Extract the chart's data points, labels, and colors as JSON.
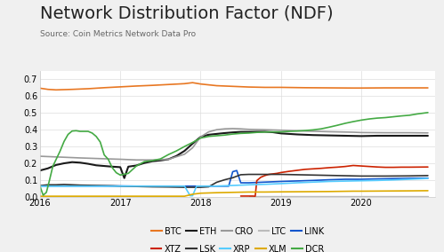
{
  "title": "Network Distribution Factor (NDF)",
  "subtitle": "Source: Coin Metrics Network Data Pro",
  "ylim": [
    0,
    0.75
  ],
  "yticks": [
    0,
    0.1,
    0.2,
    0.3,
    0.4,
    0.5,
    0.6,
    0.7
  ],
  "background_color": "#f0f0f0",
  "plot_background": "#ffffff",
  "grid_color": "#dddddd",
  "series": {
    "BTC": {
      "color": "#e87722",
      "linewidth": 1.2,
      "points": [
        [
          2016.0,
          0.645
        ],
        [
          2016.1,
          0.638
        ],
        [
          2016.2,
          0.635
        ],
        [
          2016.4,
          0.638
        ],
        [
          2016.6,
          0.642
        ],
        [
          2016.8,
          0.648
        ],
        [
          2017.0,
          0.653
        ],
        [
          2017.2,
          0.658
        ],
        [
          2017.4,
          0.662
        ],
        [
          2017.6,
          0.667
        ],
        [
          2017.8,
          0.672
        ],
        [
          2017.9,
          0.678
        ],
        [
          2018.0,
          0.67
        ],
        [
          2018.2,
          0.66
        ],
        [
          2018.4,
          0.656
        ],
        [
          2018.6,
          0.652
        ],
        [
          2018.8,
          0.65
        ],
        [
          2019.0,
          0.65
        ],
        [
          2019.3,
          0.648
        ],
        [
          2019.6,
          0.647
        ],
        [
          2019.9,
          0.646
        ],
        [
          2020.0,
          0.646
        ],
        [
          2020.3,
          0.647
        ],
        [
          2020.6,
          0.647
        ],
        [
          2020.83,
          0.647
        ]
      ]
    },
    "ETH": {
      "color": "#1a1a1a",
      "linewidth": 1.5,
      "points": [
        [
          2016.0,
          0.155
        ],
        [
          2016.1,
          0.168
        ],
        [
          2016.2,
          0.188
        ],
        [
          2016.3,
          0.198
        ],
        [
          2016.4,
          0.205
        ],
        [
          2016.5,
          0.202
        ],
        [
          2016.6,
          0.195
        ],
        [
          2016.7,
          0.186
        ],
        [
          2016.8,
          0.182
        ],
        [
          2016.9,
          0.178
        ],
        [
          2017.0,
          0.175
        ],
        [
          2017.05,
          0.11
        ],
        [
          2017.1,
          0.178
        ],
        [
          2017.2,
          0.185
        ],
        [
          2017.3,
          0.2
        ],
        [
          2017.4,
          0.21
        ],
        [
          2017.5,
          0.215
        ],
        [
          2017.6,
          0.222
        ],
        [
          2017.7,
          0.242
        ],
        [
          2017.8,
          0.272
        ],
        [
          2017.9,
          0.315
        ],
        [
          2018.0,
          0.355
        ],
        [
          2018.1,
          0.368
        ],
        [
          2018.2,
          0.373
        ],
        [
          2018.3,
          0.378
        ],
        [
          2018.4,
          0.382
        ],
        [
          2018.5,
          0.385
        ],
        [
          2018.6,
          0.385
        ],
        [
          2018.7,
          0.386
        ],
        [
          2018.8,
          0.386
        ],
        [
          2018.9,
          0.383
        ],
        [
          2019.0,
          0.376
        ],
        [
          2019.2,
          0.37
        ],
        [
          2019.4,
          0.366
        ],
        [
          2019.6,
          0.364
        ],
        [
          2019.8,
          0.362
        ],
        [
          2020.0,
          0.36
        ],
        [
          2020.2,
          0.362
        ],
        [
          2020.4,
          0.362
        ],
        [
          2020.6,
          0.362
        ],
        [
          2020.83,
          0.362
        ]
      ]
    },
    "CRO": {
      "color": "#999999",
      "linewidth": 1.2,
      "points": [
        [
          2016.0,
          0.24
        ],
        [
          2016.2,
          0.236
        ],
        [
          2016.5,
          0.23
        ],
        [
          2016.8,
          0.225
        ],
        [
          2017.0,
          0.222
        ],
        [
          2017.2,
          0.218
        ],
        [
          2017.4,
          0.218
        ],
        [
          2017.6,
          0.222
        ],
        [
          2017.8,
          0.252
        ],
        [
          2017.9,
          0.29
        ],
        [
          2018.0,
          0.355
        ],
        [
          2018.1,
          0.385
        ],
        [
          2018.2,
          0.398
        ],
        [
          2018.3,
          0.403
        ],
        [
          2018.4,
          0.405
        ],
        [
          2018.5,
          0.403
        ],
        [
          2018.6,
          0.4
        ],
        [
          2018.8,
          0.398
        ],
        [
          2019.0,
          0.395
        ],
        [
          2019.3,
          0.39
        ],
        [
          2019.6,
          0.386
        ],
        [
          2019.9,
          0.383
        ],
        [
          2020.0,
          0.381
        ],
        [
          2020.3,
          0.38
        ],
        [
          2020.6,
          0.38
        ],
        [
          2020.83,
          0.379
        ]
      ]
    },
    "LTC": {
      "color": "#bbbbbb",
      "linewidth": 1.0,
      "points": [
        [
          2018.6,
          0.003
        ],
        [
          2018.8,
          0.003
        ],
        [
          2019.0,
          0.003
        ],
        [
          2019.2,
          0.003
        ],
        [
          2019.4,
          0.003
        ],
        [
          2019.6,
          0.003
        ],
        [
          2019.8,
          0.003
        ],
        [
          2020.0,
          0.003
        ],
        [
          2020.3,
          0.003
        ],
        [
          2020.6,
          0.003
        ],
        [
          2020.83,
          0.003
        ]
      ]
    },
    "LINK": {
      "color": "#1155cc",
      "linewidth": 1.2,
      "points": [
        [
          2016.0,
          0.063
        ],
        [
          2016.2,
          0.063
        ],
        [
          2016.5,
          0.063
        ],
        [
          2016.8,
          0.063
        ],
        [
          2017.0,
          0.063
        ],
        [
          2017.2,
          0.062
        ],
        [
          2017.5,
          0.062
        ],
        [
          2017.8,
          0.062
        ],
        [
          2018.0,
          0.062
        ],
        [
          2018.2,
          0.062
        ],
        [
          2018.35,
          0.062
        ],
        [
          2018.4,
          0.148
        ],
        [
          2018.45,
          0.155
        ],
        [
          2018.5,
          0.082
        ],
        [
          2018.6,
          0.082
        ],
        [
          2018.7,
          0.084
        ],
        [
          2018.8,
          0.086
        ],
        [
          2018.9,
          0.088
        ],
        [
          2019.0,
          0.09
        ],
        [
          2019.2,
          0.093
        ],
        [
          2019.4,
          0.096
        ],
        [
          2019.6,
          0.1
        ],
        [
          2019.8,
          0.103
        ],
        [
          2020.0,
          0.103
        ],
        [
          2020.2,
          0.105
        ],
        [
          2020.4,
          0.107
        ],
        [
          2020.6,
          0.109
        ],
        [
          2020.83,
          0.11
        ]
      ]
    },
    "XTZ": {
      "color": "#cc2200",
      "linewidth": 1.2,
      "points": [
        [
          2018.5,
          0.003
        ],
        [
          2018.55,
          0.003
        ],
        [
          2018.6,
          0.003
        ],
        [
          2018.65,
          0.003
        ],
        [
          2018.68,
          0.002
        ],
        [
          2018.7,
          0.095
        ],
        [
          2018.75,
          0.115
        ],
        [
          2018.8,
          0.125
        ],
        [
          2018.85,
          0.132
        ],
        [
          2018.9,
          0.135
        ],
        [
          2018.95,
          0.138
        ],
        [
          2019.0,
          0.143
        ],
        [
          2019.1,
          0.15
        ],
        [
          2019.2,
          0.156
        ],
        [
          2019.3,
          0.162
        ],
        [
          2019.4,
          0.165
        ],
        [
          2019.5,
          0.168
        ],
        [
          2019.6,
          0.172
        ],
        [
          2019.7,
          0.175
        ],
        [
          2019.8,
          0.179
        ],
        [
          2019.9,
          0.185
        ],
        [
          2020.0,
          0.182
        ],
        [
          2020.1,
          0.179
        ],
        [
          2020.2,
          0.176
        ],
        [
          2020.3,
          0.174
        ],
        [
          2020.4,
          0.174
        ],
        [
          2020.5,
          0.175
        ],
        [
          2020.6,
          0.175
        ],
        [
          2020.83,
          0.176
        ]
      ]
    },
    "LSK": {
      "color": "#333333",
      "linewidth": 1.2,
      "points": [
        [
          2016.0,
          0.065
        ],
        [
          2016.1,
          0.07
        ],
        [
          2016.2,
          0.07
        ],
        [
          2016.3,
          0.072
        ],
        [
          2016.4,
          0.07
        ],
        [
          2016.5,
          0.068
        ],
        [
          2016.6,
          0.067
        ],
        [
          2016.7,
          0.066
        ],
        [
          2016.8,
          0.065
        ],
        [
          2016.9,
          0.064
        ],
        [
          2017.0,
          0.062
        ],
        [
          2017.2,
          0.06
        ],
        [
          2017.4,
          0.058
        ],
        [
          2017.6,
          0.057
        ],
        [
          2017.8,
          0.055
        ],
        [
          2018.0,
          0.055
        ],
        [
          2018.1,
          0.058
        ],
        [
          2018.2,
          0.085
        ],
        [
          2018.3,
          0.1
        ],
        [
          2018.4,
          0.112
        ],
        [
          2018.5,
          0.13
        ],
        [
          2018.6,
          0.132
        ],
        [
          2018.7,
          0.132
        ],
        [
          2018.8,
          0.132
        ],
        [
          2018.9,
          0.132
        ],
        [
          2019.0,
          0.132
        ],
        [
          2019.2,
          0.13
        ],
        [
          2019.4,
          0.128
        ],
        [
          2019.6,
          0.126
        ],
        [
          2019.8,
          0.124
        ],
        [
          2020.0,
          0.122
        ],
        [
          2020.3,
          0.122
        ],
        [
          2020.6,
          0.123
        ],
        [
          2020.83,
          0.125
        ]
      ]
    },
    "XRP": {
      "color": "#55ccff",
      "linewidth": 1.2,
      "points": [
        [
          2016.0,
          0.062
        ],
        [
          2016.2,
          0.062
        ],
        [
          2016.5,
          0.062
        ],
        [
          2016.8,
          0.062
        ],
        [
          2017.0,
          0.062
        ],
        [
          2017.2,
          0.062
        ],
        [
          2017.5,
          0.062
        ],
        [
          2017.8,
          0.062
        ],
        [
          2017.87,
          0.005
        ],
        [
          2017.9,
          0.005
        ],
        [
          2017.95,
          0.062
        ],
        [
          2018.0,
          0.062
        ],
        [
          2018.1,
          0.062
        ],
        [
          2018.2,
          0.062
        ],
        [
          2018.3,
          0.064
        ],
        [
          2018.4,
          0.066
        ],
        [
          2018.5,
          0.068
        ],
        [
          2018.6,
          0.07
        ],
        [
          2018.8,
          0.073
        ],
        [
          2019.0,
          0.077
        ],
        [
          2019.2,
          0.082
        ],
        [
          2019.4,
          0.086
        ],
        [
          2019.6,
          0.09
        ],
        [
          2019.8,
          0.092
        ],
        [
          2020.0,
          0.094
        ],
        [
          2020.2,
          0.096
        ],
        [
          2020.4,
          0.099
        ],
        [
          2020.6,
          0.103
        ],
        [
          2020.83,
          0.108
        ]
      ]
    },
    "XLM": {
      "color": "#ddaa00",
      "linewidth": 1.2,
      "points": [
        [
          2016.0,
          0.002
        ],
        [
          2016.5,
          0.002
        ],
        [
          2017.0,
          0.002
        ],
        [
          2017.5,
          0.002
        ],
        [
          2017.8,
          0.002
        ],
        [
          2017.9,
          0.014
        ],
        [
          2018.0,
          0.02
        ],
        [
          2018.2,
          0.023
        ],
        [
          2018.4,
          0.025
        ],
        [
          2018.6,
          0.027
        ],
        [
          2018.8,
          0.027
        ],
        [
          2019.0,
          0.028
        ],
        [
          2019.3,
          0.029
        ],
        [
          2019.6,
          0.03
        ],
        [
          2019.9,
          0.032
        ],
        [
          2020.0,
          0.032
        ],
        [
          2020.3,
          0.033
        ],
        [
          2020.6,
          0.034
        ],
        [
          2020.83,
          0.035
        ]
      ]
    },
    "DCR": {
      "color": "#44aa44",
      "linewidth": 1.2,
      "points": [
        [
          2016.0,
          0.062
        ],
        [
          2016.04,
          0.008
        ],
        [
          2016.08,
          0.025
        ],
        [
          2016.12,
          0.1
        ],
        [
          2016.16,
          0.18
        ],
        [
          2016.2,
          0.22
        ],
        [
          2016.25,
          0.27
        ],
        [
          2016.3,
          0.328
        ],
        [
          2016.35,
          0.37
        ],
        [
          2016.4,
          0.39
        ],
        [
          2016.45,
          0.392
        ],
        [
          2016.5,
          0.388
        ],
        [
          2016.55,
          0.388
        ],
        [
          2016.6,
          0.388
        ],
        [
          2016.65,
          0.378
        ],
        [
          2016.7,
          0.358
        ],
        [
          2016.75,
          0.325
        ],
        [
          2016.8,
          0.248
        ],
        [
          2016.85,
          0.222
        ],
        [
          2016.9,
          0.172
        ],
        [
          2016.95,
          0.142
        ],
        [
          2017.0,
          0.128
        ],
        [
          2017.1,
          0.138
        ],
        [
          2017.2,
          0.182
        ],
        [
          2017.3,
          0.208
        ],
        [
          2017.4,
          0.214
        ],
        [
          2017.5,
          0.224
        ],
        [
          2017.6,
          0.25
        ],
        [
          2017.7,
          0.272
        ],
        [
          2017.8,
          0.298
        ],
        [
          2017.9,
          0.322
        ],
        [
          2018.0,
          0.348
        ],
        [
          2018.1,
          0.358
        ],
        [
          2018.2,
          0.362
        ],
        [
          2018.3,
          0.366
        ],
        [
          2018.4,
          0.372
        ],
        [
          2018.5,
          0.376
        ],
        [
          2018.6,
          0.378
        ],
        [
          2018.7,
          0.382
        ],
        [
          2018.8,
          0.384
        ],
        [
          2018.9,
          0.385
        ],
        [
          2019.0,
          0.385
        ],
        [
          2019.1,
          0.388
        ],
        [
          2019.2,
          0.39
        ],
        [
          2019.3,
          0.393
        ],
        [
          2019.4,
          0.397
        ],
        [
          2019.5,
          0.403
        ],
        [
          2019.6,
          0.413
        ],
        [
          2019.7,
          0.424
        ],
        [
          2019.8,
          0.436
        ],
        [
          2019.9,
          0.446
        ],
        [
          2020.0,
          0.455
        ],
        [
          2020.1,
          0.462
        ],
        [
          2020.2,
          0.467
        ],
        [
          2020.3,
          0.47
        ],
        [
          2020.4,
          0.475
        ],
        [
          2020.5,
          0.48
        ],
        [
          2020.6,
          0.484
        ],
        [
          2020.7,
          0.492
        ],
        [
          2020.83,
          0.5
        ]
      ]
    }
  },
  "legend_row1": [
    "BTC",
    "ETH",
    "CRO",
    "LTC",
    "LINK"
  ],
  "legend_row2": [
    "XTZ",
    "LSK",
    "XRP",
    "XLM",
    "DCR"
  ],
  "xmin": 2016.0,
  "xmax": 2020.92,
  "xticks": [
    2016,
    2017,
    2018,
    2019,
    2020
  ],
  "title_fontsize": 14,
  "subtitle_fontsize": 6.5,
  "tick_fontsize": 7,
  "legend_fontsize": 7
}
